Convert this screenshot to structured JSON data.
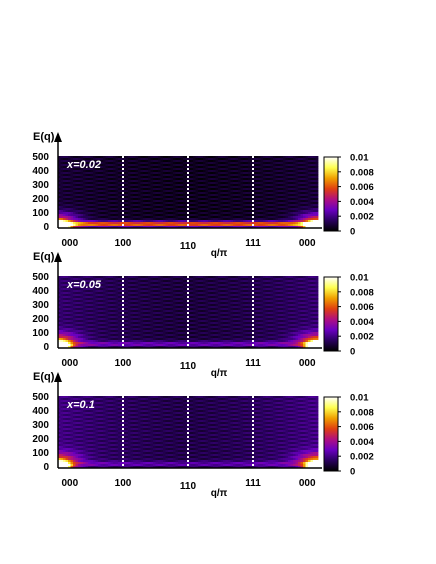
{
  "chart_data": [
    {
      "type": "heatmap",
      "panel_label": "x=0.02",
      "ylabel": "E(q)",
      "xlabel": "q/π",
      "xticks": [
        "000",
        "100",
        "110",
        "111",
        "000"
      ],
      "yticks": [
        "500",
        "400",
        "300",
        "200",
        "100",
        "0"
      ],
      "ylim": [
        0,
        500
      ],
      "colorbar": {
        "ticks": [
          "0.01",
          "0.008",
          "0.006",
          "0.004",
          "0.002",
          "0"
        ],
        "range": [
          0,
          0.01
        ]
      },
      "features": {
        "low_energy_band_intensity": 0.006,
        "gamma_peak_intensity": 0.01,
        "background_intensity": 0.0005
      }
    },
    {
      "type": "heatmap",
      "panel_label": "x=0.05",
      "ylabel": "E(q)",
      "xlabel": "q/π",
      "xticks": [
        "000",
        "100",
        "110",
        "111",
        "000"
      ],
      "yticks": [
        "500",
        "400",
        "300",
        "200",
        "100",
        "0"
      ],
      "ylim": [
        0,
        500
      ],
      "colorbar": {
        "ticks": [
          "0.01",
          "0.008",
          "0.006",
          "0.004",
          "0.002",
          "0"
        ],
        "range": [
          0,
          0.01
        ]
      },
      "features": {
        "low_energy_band_intensity": 0.002,
        "gamma_peak_intensity": 0.01,
        "background_intensity": 0.001
      }
    },
    {
      "type": "heatmap",
      "panel_label": "x=0.1",
      "ylabel": "E(q)",
      "xlabel": "q/π",
      "xticks": [
        "000",
        "100",
        "110",
        "111",
        "000"
      ],
      "yticks": [
        "500",
        "400",
        "300",
        "200",
        "100",
        "0"
      ],
      "ylim": [
        0,
        500
      ],
      "colorbar": {
        "ticks": [
          "0.01",
          "0.008",
          "0.006",
          "0.004",
          "0.002",
          "0"
        ],
        "range": [
          0,
          0.01
        ]
      },
      "features": {
        "low_energy_band_intensity": 0.0015,
        "gamma_peak_intensity": 0.01,
        "background_intensity": 0.0012
      }
    }
  ],
  "colors": {
    "colormap": [
      "#000000",
      "#2a0060",
      "#6a00c0",
      "#b01080",
      "#e04010",
      "#f0a000",
      "#ffff50",
      "#ffffff"
    ],
    "grid_line": "#ffffff",
    "axis": "#000000"
  },
  "icons": {
    "axis_arrow": "arrow-up-icon"
  }
}
